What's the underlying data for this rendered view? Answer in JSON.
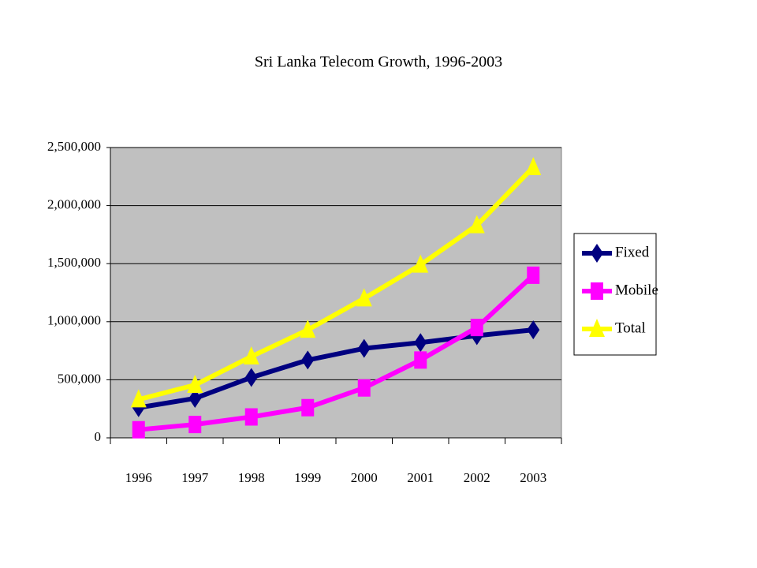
{
  "chart_data": {
    "type": "line",
    "title": "Sri Lanka Telecom Growth, 1996-2003",
    "categories": [
      "1996",
      "1997",
      "1998",
      "1999",
      "2000",
      "2001",
      "2002",
      "2003"
    ],
    "series": [
      {
        "name": "Fixed",
        "color": "#000080",
        "marker": "diamond",
        "values": [
          260000,
          340000,
          520000,
          670000,
          770000,
          820000,
          880000,
          930000
        ]
      },
      {
        "name": "Mobile",
        "color": "#ff00ff",
        "marker": "square",
        "values": [
          70000,
          115000,
          180000,
          260000,
          430000,
          670000,
          950000,
          1400000
        ]
      },
      {
        "name": "Total",
        "color": "#ffff00",
        "marker": "triangle",
        "values": [
          330000,
          455000,
          700000,
          930000,
          1200000,
          1490000,
          1830000,
          2330000
        ]
      }
    ],
    "ylim": [
      0,
      2500000
    ],
    "yticks": [
      0,
      {
        "value": 500000,
        "label": "500,000"
      },
      {
        "value": 1000000,
        "label": "1,000,000"
      },
      {
        "value": 1500000,
        "label": "1,500,000"
      },
      {
        "value": 2000000,
        "label": "2,000,000"
      },
      {
        "value": 2500000,
        "label": "2,500,000"
      }
    ],
    "grid": true,
    "plot_background": "#c0c0c0",
    "legend": "right"
  }
}
